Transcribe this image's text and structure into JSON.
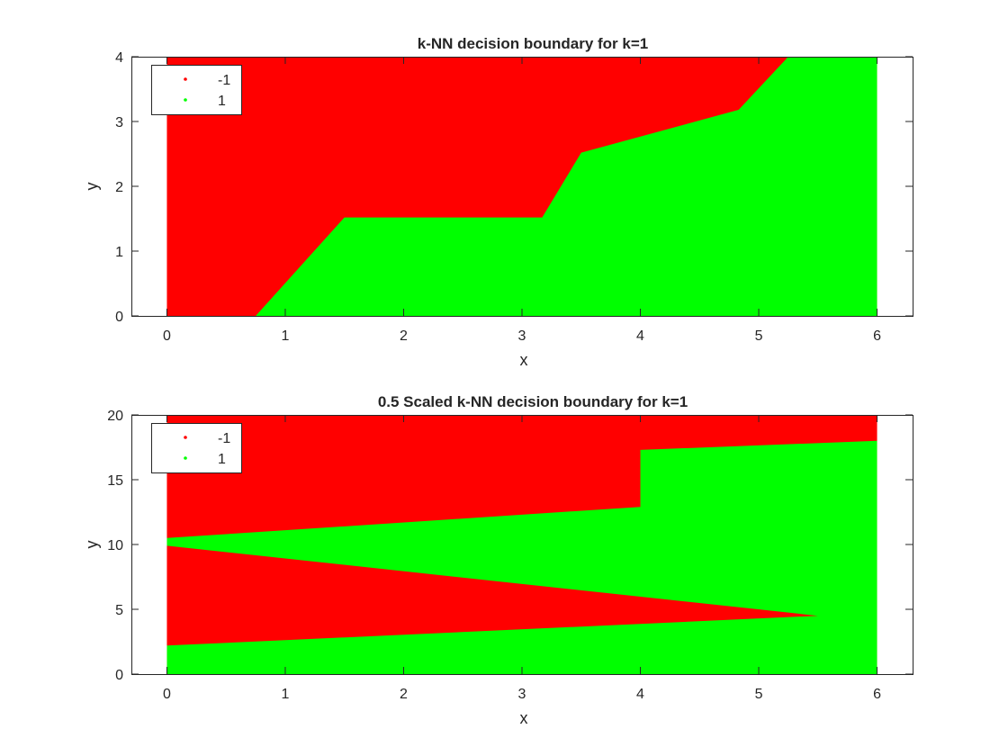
{
  "chart_data": [
    {
      "type": "area",
      "title": "k-NN decision boundary for k=1",
      "xlabel": "x",
      "ylabel": "y",
      "xlim": [
        -0.3,
        6.3
      ],
      "ylim": [
        0,
        4
      ],
      "xticks": [
        0,
        1,
        2,
        3,
        4,
        5,
        6
      ],
      "yticks": [
        0,
        1,
        2,
        3,
        4
      ],
      "grid": false,
      "legend_location": "top-left",
      "class_colors": {
        "-1": "#ff0000",
        "1": "#00ff00"
      },
      "legend": [
        "-1",
        "1"
      ],
      "grid_extent": {
        "x": [
          0,
          6
        ],
        "y": [
          0,
          4
        ]
      },
      "background_class": "-1",
      "regions": [
        {
          "class": "1",
          "polygon": [
            [
              0.75,
              0
            ],
            [
              1.5,
              1.52
            ],
            [
              3.17,
              1.52
            ],
            [
              3.5,
              2.52
            ],
            [
              4.83,
              3.18
            ],
            [
              5.25,
              4
            ],
            [
              6,
              4
            ],
            [
              6,
              0
            ]
          ]
        }
      ]
    },
    {
      "type": "area",
      "title": "0.5 Scaled k-NN decision boundary for k=1",
      "xlabel": "x",
      "ylabel": "y",
      "xlim": [
        -0.3,
        6.3
      ],
      "ylim": [
        0,
        20
      ],
      "xticks": [
        0,
        1,
        2,
        3,
        4,
        5,
        6
      ],
      "yticks": [
        0,
        5,
        10,
        15,
        20
      ],
      "grid": false,
      "legend_location": "top-left",
      "class_colors": {
        "-1": "#ff0000",
        "1": "#00ff00"
      },
      "legend": [
        "-1",
        "1"
      ],
      "grid_extent": {
        "x": [
          0,
          6
        ],
        "y": [
          0,
          20
        ]
      },
      "background_class": "-1",
      "regions": [
        {
          "class": "1",
          "polygon": [
            [
              0,
              0
            ],
            [
              6,
              0
            ],
            [
              6,
              18
            ],
            [
              4,
              17.3
            ],
            [
              4,
              12.9
            ],
            [
              0,
              10.5
            ],
            [
              0,
              9.9
            ],
            [
              5.5,
              4.5
            ],
            [
              0,
              2.2
            ]
          ]
        }
      ]
    }
  ]
}
